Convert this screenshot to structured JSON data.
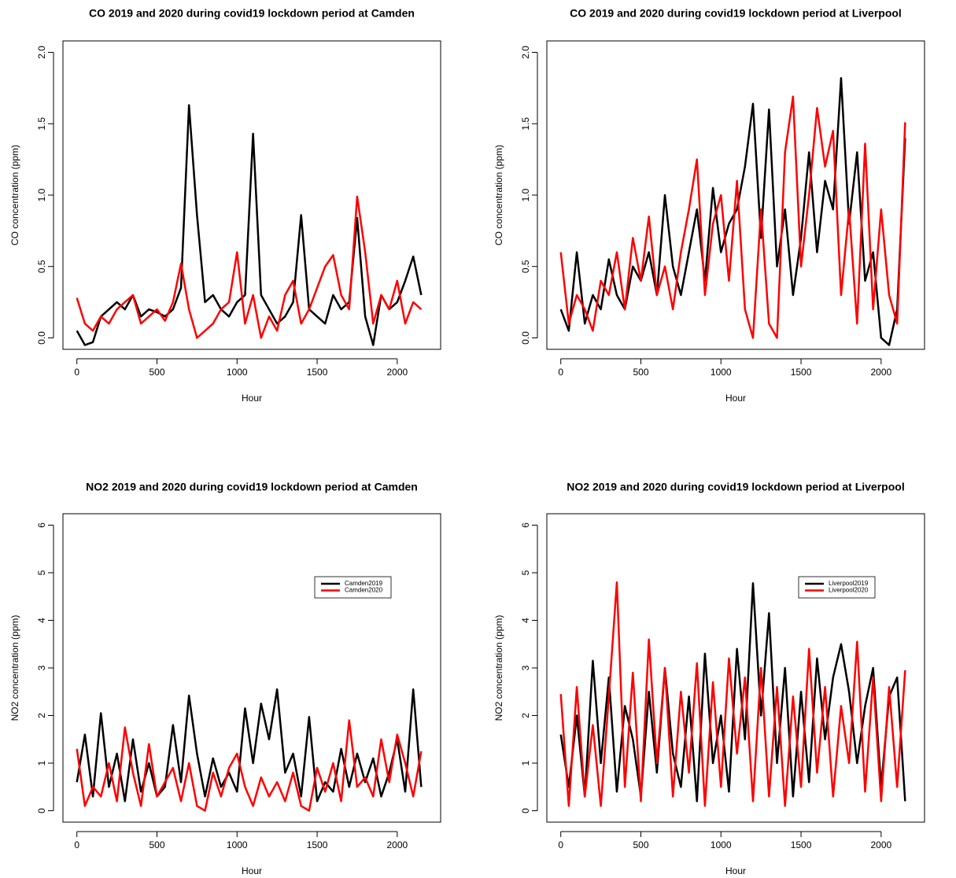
{
  "chart_data": [
    {
      "type": "line",
      "title": "CO 2019 and 2020 during covid19 lockdown period at Camden",
      "x_label": "Hour",
      "y_label": "CO concentration (ppm)",
      "x": [
        0,
        50,
        100,
        150,
        200,
        250,
        300,
        350,
        400,
        450,
        500,
        550,
        600,
        650,
        700,
        750,
        800,
        850,
        900,
        950,
        1000,
        1050,
        1100,
        1150,
        1200,
        1250,
        1300,
        1350,
        1400,
        1450,
        1500,
        1550,
        1600,
        1650,
        1700,
        1750,
        1800,
        1850,
        1900,
        1950,
        2000,
        2050,
        2100,
        2150
      ],
      "series": [
        {
          "color": "#000000",
          "values": [
            0.05,
            -0.05,
            -0.03,
            0.15,
            0.2,
            0.25,
            0.2,
            0.3,
            0.15,
            0.2,
            0.18,
            0.15,
            0.2,
            0.35,
            1.63,
            0.86,
            0.25,
            0.3,
            0.2,
            0.15,
            0.25,
            0.3,
            1.43,
            0.3,
            0.2,
            0.1,
            0.15,
            0.25,
            0.86,
            0.2,
            0.15,
            0.1,
            0.3,
            0.2,
            0.25,
            0.84,
            0.15,
            -0.05,
            0.3,
            0.2,
            0.25,
            0.4,
            0.57,
            0.3
          ]
        },
        {
          "color": "#ff0000",
          "values": [
            0.28,
            0.1,
            0.05,
            0.15,
            0.1,
            0.2,
            0.25,
            0.3,
            0.1,
            0.15,
            0.2,
            0.12,
            0.25,
            0.52,
            0.2,
            0.0,
            0.05,
            0.1,
            0.2,
            0.25,
            0.6,
            0.1,
            0.3,
            0.0,
            0.15,
            0.05,
            0.3,
            0.4,
            0.1,
            0.2,
            0.35,
            0.5,
            0.58,
            0.3,
            0.2,
            0.99,
            0.6,
            0.1,
            0.3,
            0.2,
            0.4,
            0.1,
            0.25,
            0.2
          ]
        }
      ],
      "xlim": [
        -87,
        2271
      ],
      "xticks": [
        0,
        500,
        1000,
        1500,
        2000
      ],
      "ylim": [
        -0.08,
        2.08
      ],
      "yticks": [
        {
          "value": 0,
          "label": "0.0"
        },
        0.5,
        {
          "value": 1,
          "label": "1.0"
        },
        1.5,
        {
          "value": 2,
          "label": "2.0"
        }
      ]
    },
    {
      "type": "line",
      "title": "CO 2019 and 2020 during covid19 lockdown period at Liverpool",
      "x_label": "Hour",
      "y_label": "CO concentration (ppm)",
      "x": [
        0,
        50,
        100,
        150,
        200,
        250,
        300,
        350,
        400,
        450,
        500,
        550,
        600,
        650,
        700,
        750,
        800,
        850,
        900,
        950,
        1000,
        1050,
        1100,
        1150,
        1200,
        1250,
        1300,
        1350,
        1400,
        1450,
        1500,
        1550,
        1600,
        1650,
        1700,
        1750,
        1800,
        1850,
        1900,
        1950,
        2000,
        2050,
        2100,
        2150
      ],
      "series": [
        {
          "color": "#000000",
          "values": [
            0.2,
            0.05,
            0.6,
            0.1,
            0.3,
            0.2,
            0.55,
            0.3,
            0.2,
            0.5,
            0.4,
            0.6,
            0.3,
            1.0,
            0.5,
            0.3,
            0.6,
            0.9,
            0.4,
            1.05,
            0.6,
            0.8,
            0.9,
            1.2,
            1.64,
            0.7,
            1.6,
            0.5,
            0.9,
            0.3,
            0.7,
            1.3,
            0.6,
            1.1,
            0.9,
            1.82,
            0.8,
            1.3,
            0.4,
            0.6,
            0.0,
            -0.05,
            0.2,
            1.4
          ]
        },
        {
          "color": "#ff0000",
          "values": [
            0.6,
            0.1,
            0.3,
            0.2,
            0.05,
            0.4,
            0.3,
            0.6,
            0.2,
            0.7,
            0.4,
            0.85,
            0.3,
            0.5,
            0.2,
            0.6,
            0.9,
            1.25,
            0.3,
            0.8,
            1.0,
            0.4,
            1.1,
            0.2,
            0.0,
            0.9,
            0.1,
            0.0,
            1.3,
            1.69,
            0.5,
            1.0,
            1.61,
            1.2,
            1.45,
            0.3,
            0.9,
            0.1,
            1.36,
            0.2,
            0.9,
            0.3,
            0.1,
            1.51
          ]
        }
      ],
      "xlim": [
        -87,
        2271
      ],
      "xticks": [
        0,
        500,
        1000,
        1500,
        2000
      ],
      "ylim": [
        -0.08,
        2.08
      ],
      "yticks": [
        {
          "value": 0,
          "label": "0.0"
        },
        0.5,
        {
          "value": 1,
          "label": "1.0"
        },
        1.5,
        {
          "value": 2,
          "label": "2.0"
        }
      ]
    },
    {
      "type": "line",
      "title": "NO2 2019 and 2020 during covid19 lockdown period at Camden",
      "x_label": "Hour",
      "y_label": "NO2 concentration (ppm)",
      "legend": "upper right",
      "x": [
        0,
        50,
        100,
        150,
        200,
        250,
        300,
        350,
        400,
        450,
        500,
        550,
        600,
        650,
        700,
        750,
        800,
        850,
        900,
        950,
        1000,
        1050,
        1100,
        1150,
        1200,
        1250,
        1300,
        1350,
        1400,
        1450,
        1500,
        1550,
        1600,
        1650,
        1700,
        1750,
        1800,
        1850,
        1900,
        1950,
        2000,
        2050,
        2100,
        2150
      ],
      "series": [
        {
          "name": "Camden2019",
          "color": "#000000",
          "values": [
            0.6,
            1.6,
            0.3,
            2.05,
            0.5,
            1.2,
            0.2,
            1.5,
            0.4,
            1.0,
            0.3,
            0.5,
            1.8,
            0.6,
            2.42,
            1.2,
            0.3,
            1.1,
            0.5,
            0.8,
            0.4,
            2.15,
            1.0,
            2.25,
            1.5,
            2.55,
            0.8,
            1.2,
            0.3,
            1.97,
            0.2,
            0.6,
            0.4,
            1.3,
            0.5,
            1.2,
            0.6,
            1.1,
            0.3,
            0.8,
            1.5,
            0.4,
            2.55,
            0.5
          ]
        },
        {
          "name": "Camden2020",
          "color": "#ff0000",
          "values": [
            1.3,
            0.1,
            0.5,
            0.3,
            1.0,
            0.2,
            1.75,
            0.8,
            0.1,
            1.4,
            0.3,
            0.6,
            0.9,
            0.2,
            1.0,
            0.1,
            0.0,
            0.8,
            0.3,
            0.9,
            1.2,
            0.5,
            0.1,
            0.7,
            0.3,
            0.6,
            0.2,
            0.8,
            0.1,
            0.0,
            0.9,
            0.4,
            1.0,
            0.2,
            1.9,
            0.5,
            0.7,
            0.3,
            1.5,
            0.6,
            1.6,
            1.0,
            0.3,
            1.25
          ]
        }
      ],
      "xlim": [
        -87,
        2271
      ],
      "xticks": [
        0,
        500,
        1000,
        1500,
        2000
      ],
      "ylim": [
        -0.24,
        6.24
      ],
      "yticks": [
        0,
        1,
        2,
        3,
        4,
        5,
        6
      ]
    },
    {
      "type": "line",
      "title": "NO2 2019 and 2020 during covid19 lockdown period at Liverpool",
      "x_label": "Hour",
      "y_label": "NO2 concentration (ppm)",
      "legend": "upper right",
      "x": [
        0,
        50,
        100,
        150,
        200,
        250,
        300,
        350,
        400,
        450,
        500,
        550,
        600,
        650,
        700,
        750,
        800,
        850,
        900,
        950,
        1000,
        1050,
        1100,
        1150,
        1200,
        1250,
        1300,
        1350,
        1400,
        1450,
        1500,
        1550,
        1600,
        1650,
        1700,
        1750,
        1800,
        1850,
        1900,
        1950,
        2000,
        2050,
        2100,
        2150
      ],
      "series": [
        {
          "name": "Liverpool2019",
          "color": "#000000",
          "values": [
            1.6,
            0.5,
            2.0,
            0.3,
            3.15,
            1.0,
            2.8,
            0.4,
            2.2,
            1.5,
            0.3,
            2.5,
            0.8,
            3.0,
            1.2,
            0.5,
            2.4,
            0.2,
            3.3,
            1.0,
            2.0,
            0.4,
            3.4,
            1.5,
            4.78,
            2.0,
            4.15,
            1.0,
            3.0,
            0.3,
            2.5,
            0.6,
            3.2,
            1.5,
            2.8,
            3.5,
            2.5,
            1.0,
            2.2,
            3.0,
            0.5,
            2.4,
            2.8,
            0.2
          ]
        },
        {
          "name": "Liverpool2020",
          "color": "#ff0000",
          "values": [
            2.45,
            0.1,
            2.6,
            0.3,
            1.8,
            0.1,
            2.4,
            4.8,
            0.5,
            2.9,
            0.2,
            3.6,
            1.0,
            3.0,
            0.3,
            2.5,
            0.8,
            3.1,
            0.1,
            2.7,
            0.5,
            3.2,
            1.2,
            2.8,
            0.2,
            3.0,
            0.3,
            2.6,
            0.1,
            2.4,
            0.5,
            3.4,
            0.8,
            2.6,
            0.3,
            2.2,
            1.0,
            3.55,
            0.4,
            2.8,
            0.2,
            2.6,
            0.5,
            2.95
          ]
        }
      ],
      "xlim": [
        -87,
        2271
      ],
      "xticks": [
        0,
        500,
        1000,
        1500,
        2000
      ],
      "ylim": [
        -0.24,
        6.24
      ],
      "yticks": [
        0,
        1,
        2,
        3,
        4,
        5,
        6
      ]
    }
  ]
}
